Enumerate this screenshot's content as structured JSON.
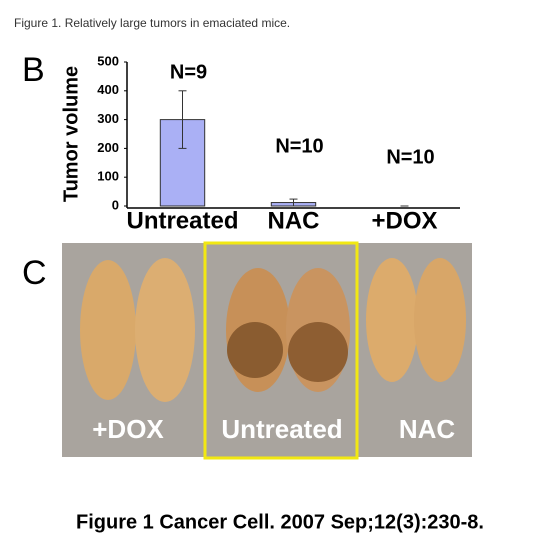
{
  "caption": "Figure 1. Relatively large tumors in emaciated mice.",
  "panel_b": "B",
  "chart_data": {
    "type": "bar",
    "ylabel": "Tumor volume",
    "categories": [
      "Untreated",
      "NAC",
      "+DOX"
    ],
    "values": [
      300,
      12,
      0
    ],
    "errors": [
      100,
      12,
      0
    ],
    "annotations": [
      "N=9",
      "N=10",
      "N=10"
    ],
    "color": "#aab0f5",
    "ylim": [
      0,
      500
    ],
    "yticks": [
      0,
      100,
      200,
      300,
      400,
      500
    ]
  },
  "panel_c": "C",
  "photo_labels": [
    "+DOX",
    "Untreated",
    "NAC"
  ],
  "footer": "Figure 1 Cancer Cell. 2007 Sep;12(3):230-8."
}
